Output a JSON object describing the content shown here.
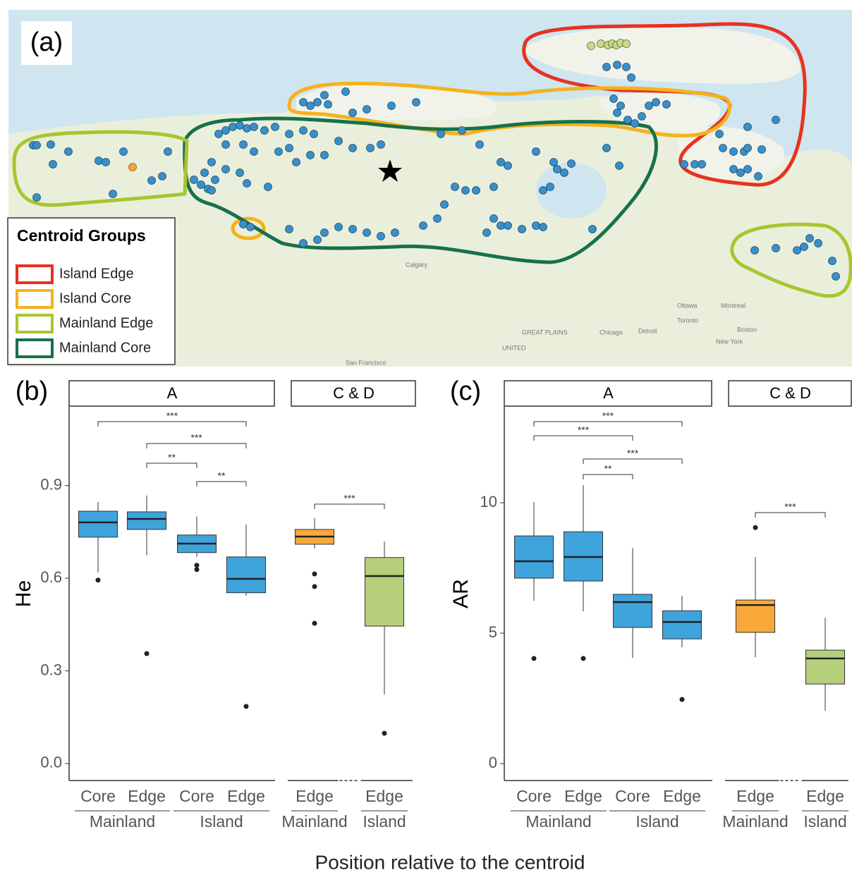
{
  "map": {
    "label": "(a)",
    "legend": {
      "title": "Centroid Groups",
      "items": [
        {
          "name": "Island Edge",
          "color": "#e8321f"
        },
        {
          "name": "Island Core",
          "color": "#f5b21b"
        },
        {
          "name": "Mainland Edge",
          "color": "#a8c62e"
        },
        {
          "name": "Mainland Core",
          "color": "#17714a"
        }
      ]
    },
    "places": [
      "Calgary",
      "GREAT PLAINS",
      "UNITED",
      "Chicago",
      "Detroit",
      "Toronto",
      "Ottawa",
      "Montreal",
      "Boston",
      "New York",
      "San Francisco"
    ]
  },
  "x_label": "Position relative to the centroid",
  "chart_data": [
    {
      "type": "box",
      "label": "(b)",
      "y_label": "He",
      "ylim": [
        -0.055,
        1.155
      ],
      "yticks": [
        {
          "value": 0,
          "label": "0.0"
        },
        0.3,
        0.6,
        0.9
      ],
      "facets": [
        {
          "name": "A",
          "comparisons": [
            "***",
            "***",
            "**",
            "**"
          ],
          "groups": [
            {
              "name": "Mainland",
              "boxes": [
                {
                  "position": "Core",
                  "color": "#3fa3dc",
                  "min": 0.619,
                  "q1": 0.733,
                  "median": 0.781,
                  "q3": 0.817,
                  "max": 0.847,
                  "outliers": [
                    0.594
                  ]
                },
                {
                  "position": "Edge",
                  "color": "#3fa3dc",
                  "min": 0.674,
                  "q1": 0.758,
                  "median": 0.792,
                  "q3": 0.815,
                  "max": 0.868,
                  "outliers": [
                    0.356
                  ]
                }
              ]
            },
            {
              "name": "Island",
              "boxes": [
                {
                  "position": "Core",
                  "color": "#3fa3dc",
                  "min": 0.669,
                  "q1": 0.683,
                  "median": 0.712,
                  "q3": 0.74,
                  "max": 0.8,
                  "outliers": [
                    0.642,
                    0.628
                  ]
                },
                {
                  "position": "Edge",
                  "color": "#3fa3dc",
                  "min": 0.543,
                  "q1": 0.553,
                  "median": 0.598,
                  "q3": 0.669,
                  "max": 0.774,
                  "outliers": [
                    0.185
                  ]
                }
              ]
            }
          ]
        },
        {
          "name": "C & D",
          "comparisons": [
            "***"
          ],
          "groups": [
            {
              "name": "Mainland",
              "boxes": [
                {
                  "position": "Edge",
                  "color": "#f8a93a",
                  "min": 0.696,
                  "q1": 0.71,
                  "median": 0.735,
                  "q3": 0.758,
                  "max": 0.795,
                  "outliers": [
                    0.614,
                    0.573,
                    0.454
                  ]
                }
              ]
            },
            {
              "name": "Island",
              "boxes": [
                {
                  "position": "Edge",
                  "color": "#b5cf7a",
                  "min": 0.224,
                  "q1": 0.445,
                  "median": 0.607,
                  "q3": 0.667,
                  "max": 0.719,
                  "outliers": [
                    0.098
                  ]
                }
              ]
            }
          ]
        }
      ]
    },
    {
      "type": "box",
      "label": "(c)",
      "y_label": "AR",
      "ylim": [
        -0.65,
        13.68
      ],
      "yticks": [
        0,
        5,
        10
      ],
      "facets": [
        {
          "name": "A",
          "comparisons": [
            "***",
            "***",
            "***",
            "**"
          ],
          "groups": [
            {
              "name": "Mainland",
              "boxes": [
                {
                  "position": "Core",
                  "color": "#3fa3dc",
                  "min": 6.24,
                  "q1": 7.11,
                  "median": 7.76,
                  "q3": 8.73,
                  "max": 10.03,
                  "outliers": [
                    4.03
                  ]
                },
                {
                  "position": "Edge",
                  "color": "#3fa3dc",
                  "min": 5.84,
                  "q1": 7.0,
                  "median": 7.92,
                  "q3": 8.89,
                  "max": 10.68,
                  "outliers": [
                    4.03
                  ]
                }
              ]
            },
            {
              "name": "Island",
              "boxes": [
                {
                  "position": "Core",
                  "color": "#3fa3dc",
                  "min": 4.05,
                  "q1": 5.22,
                  "median": 6.19,
                  "q3": 6.49,
                  "max": 8.27,
                  "outliers": []
                },
                {
                  "position": "Edge",
                  "color": "#3fa3dc",
                  "min": 4.46,
                  "q1": 4.78,
                  "median": 5.43,
                  "q3": 5.86,
                  "max": 6.43,
                  "outliers": [
                    2.46
                  ]
                }
              ]
            }
          ]
        },
        {
          "name": "C & D",
          "comparisons": [
            "***"
          ],
          "groups": [
            {
              "name": "Mainland",
              "boxes": [
                {
                  "position": "Edge",
                  "color": "#f8a93a",
                  "min": 4.08,
                  "q1": 5.03,
                  "median": 6.08,
                  "q3": 6.27,
                  "max": 7.92,
                  "outliers": [
                    9.05
                  ]
                }
              ]
            },
            {
              "name": "Island",
              "boxes": [
                {
                  "position": "Edge",
                  "color": "#b5cf7a",
                  "min": 2.03,
                  "q1": 3.05,
                  "median": 4.03,
                  "q3": 4.35,
                  "max": 5.59,
                  "outliers": []
                }
              ]
            }
          ]
        }
      ]
    }
  ]
}
